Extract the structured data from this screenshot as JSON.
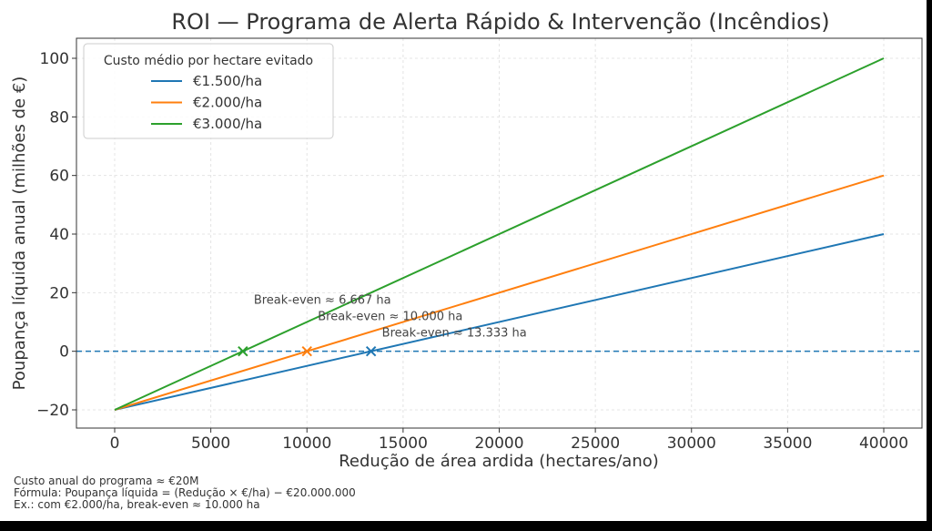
{
  "chart_data": {
    "type": "line",
    "title": "ROI — Programa de Alerta Rápido & Intervenção (Incêndios)",
    "xlabel": "Redução de área ardida (hectares/ano)",
    "ylabel": "Poupança líquida anual (milhões de €)",
    "xlim": [
      -2000,
      42000
    ],
    "ylim": [
      -26,
      106
    ],
    "xticks": [
      0,
      5000,
      10000,
      15000,
      20000,
      25000,
      30000,
      35000,
      40000
    ],
    "yticks": [
      -20,
      0,
      20,
      40,
      60,
      80,
      100
    ],
    "ytick_labels": [
      "−20",
      "0",
      "20",
      "40",
      "60",
      "80",
      "100"
    ],
    "grid": true,
    "legend": {
      "title": "Custo médio por hectare evitado",
      "position": "top-left"
    },
    "x": [
      0,
      40000
    ],
    "series": [
      {
        "name": "€1.500/ha",
        "color": "#1f77b4",
        "values": [
          -20,
          40
        ],
        "break_even": 13333,
        "annotation": "Break-even ≈ 13.333 ha"
      },
      {
        "name": "€2.000/ha",
        "color": "#ff7f0e",
        "values": [
          -20,
          60
        ],
        "break_even": 10000,
        "annotation": "Break-even ≈ 10.000 ha"
      },
      {
        "name": "€3.000/ha",
        "color": "#2ca02c",
        "values": [
          -20,
          100
        ],
        "break_even": 6667,
        "annotation": "Break-even ≈ 6.667 ha"
      }
    ],
    "reference_line": {
      "y": 0,
      "style": "dashed",
      "color": "#1f77b4"
    }
  },
  "footnotes": [
    "Custo anual do programa ≈ €20M",
    "Fórmula: Poupança líquida = (Redução × €/ha) − €20.000.000",
    "Ex.: com €2.000/ha, break-even ≈ 10.000 ha"
  ]
}
